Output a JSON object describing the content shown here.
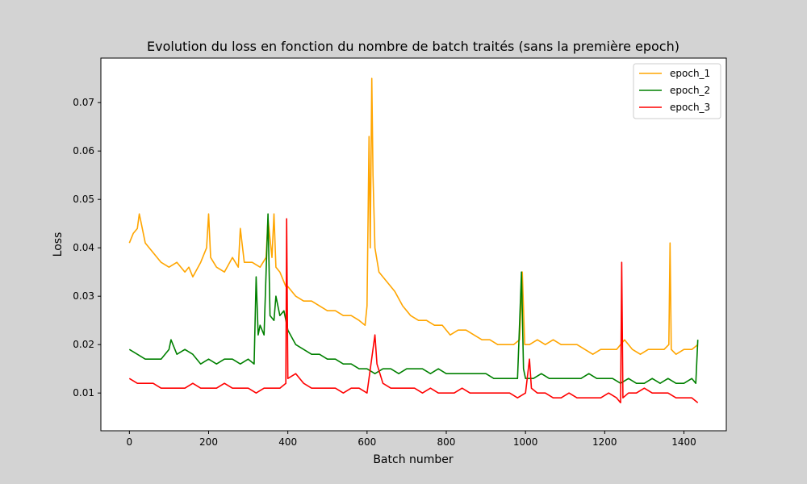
{
  "figure": {
    "background": "#d3d3d3"
  },
  "chart_data": {
    "type": "line",
    "title": "Evolution du loss en fonction du nombre de batch traités (sans la première epoch)",
    "xlabel": "Batch number",
    "ylabel": "Loss",
    "xlim": [
      -72,
      1507
    ],
    "ylim": [
      0.0022,
      0.0792
    ],
    "xticks": [
      0,
      200,
      400,
      600,
      800,
      1000,
      1200,
      1400
    ],
    "yticks": [
      0.01,
      0.02,
      0.03,
      0.04,
      0.05,
      0.06,
      0.07
    ],
    "xtick_labels": [
      "0",
      "200",
      "400",
      "600",
      "800",
      "1000",
      "1200",
      "1400"
    ],
    "ytick_labels": [
      "0.01",
      "0.02",
      "0.03",
      "0.04",
      "0.05",
      "0.06",
      "0.07"
    ],
    "grid": false,
    "legend": {
      "position": "upper right"
    },
    "series": [
      {
        "name": "epoch_1",
        "color": "#ffa500",
        "points": [
          [
            0,
            0.041
          ],
          [
            10,
            0.043
          ],
          [
            20,
            0.044
          ],
          [
            25,
            0.047
          ],
          [
            30,
            0.045
          ],
          [
            40,
            0.041
          ],
          [
            60,
            0.039
          ],
          [
            80,
            0.037
          ],
          [
            100,
            0.036
          ],
          [
            120,
            0.037
          ],
          [
            140,
            0.035
          ],
          [
            150,
            0.036
          ],
          [
            160,
            0.034
          ],
          [
            180,
            0.037
          ],
          [
            195,
            0.04
          ],
          [
            200,
            0.047
          ],
          [
            205,
            0.038
          ],
          [
            220,
            0.036
          ],
          [
            240,
            0.035
          ],
          [
            260,
            0.038
          ],
          [
            275,
            0.036
          ],
          [
            280,
            0.044
          ],
          [
            290,
            0.037
          ],
          [
            310,
            0.037
          ],
          [
            330,
            0.036
          ],
          [
            345,
            0.038
          ],
          [
            350,
            0.046
          ],
          [
            360,
            0.038
          ],
          [
            365,
            0.047
          ],
          [
            370,
            0.036
          ],
          [
            380,
            0.035
          ],
          [
            395,
            0.032
          ],
          [
            400,
            0.032
          ],
          [
            420,
            0.03
          ],
          [
            440,
            0.029
          ],
          [
            460,
            0.029
          ],
          [
            480,
            0.028
          ],
          [
            500,
            0.027
          ],
          [
            520,
            0.027
          ],
          [
            540,
            0.026
          ],
          [
            560,
            0.026
          ],
          [
            580,
            0.025
          ],
          [
            595,
            0.024
          ],
          [
            600,
            0.028
          ],
          [
            605,
            0.063
          ],
          [
            608,
            0.04
          ],
          [
            612,
            0.075
          ],
          [
            615,
            0.055
          ],
          [
            620,
            0.04
          ],
          [
            630,
            0.035
          ],
          [
            650,
            0.033
          ],
          [
            670,
            0.031
          ],
          [
            690,
            0.028
          ],
          [
            710,
            0.026
          ],
          [
            730,
            0.025
          ],
          [
            750,
            0.025
          ],
          [
            770,
            0.024
          ],
          [
            790,
            0.024
          ],
          [
            810,
            0.022
          ],
          [
            830,
            0.023
          ],
          [
            850,
            0.023
          ],
          [
            870,
            0.022
          ],
          [
            890,
            0.021
          ],
          [
            910,
            0.021
          ],
          [
            930,
            0.02
          ],
          [
            950,
            0.02
          ],
          [
            970,
            0.02
          ],
          [
            985,
            0.021
          ],
          [
            992,
            0.035
          ],
          [
            998,
            0.02
          ],
          [
            1010,
            0.02
          ],
          [
            1030,
            0.021
          ],
          [
            1050,
            0.02
          ],
          [
            1070,
            0.021
          ],
          [
            1090,
            0.02
          ],
          [
            1110,
            0.02
          ],
          [
            1130,
            0.02
          ],
          [
            1150,
            0.019
          ],
          [
            1170,
            0.018
          ],
          [
            1190,
            0.019
          ],
          [
            1210,
            0.019
          ],
          [
            1230,
            0.019
          ],
          [
            1250,
            0.021
          ],
          [
            1270,
            0.019
          ],
          [
            1290,
            0.018
          ],
          [
            1310,
            0.019
          ],
          [
            1330,
            0.019
          ],
          [
            1350,
            0.019
          ],
          [
            1362,
            0.02
          ],
          [
            1365,
            0.041
          ],
          [
            1368,
            0.019
          ],
          [
            1380,
            0.018
          ],
          [
            1400,
            0.019
          ],
          [
            1420,
            0.019
          ],
          [
            1435,
            0.02
          ]
        ]
      },
      {
        "name": "epoch_2",
        "color": "#008000",
        "points": [
          [
            0,
            0.019
          ],
          [
            20,
            0.018
          ],
          [
            40,
            0.017
          ],
          [
            60,
            0.017
          ],
          [
            80,
            0.017
          ],
          [
            100,
            0.019
          ],
          [
            105,
            0.021
          ],
          [
            120,
            0.018
          ],
          [
            140,
            0.019
          ],
          [
            160,
            0.018
          ],
          [
            180,
            0.016
          ],
          [
            200,
            0.017
          ],
          [
            220,
            0.016
          ],
          [
            240,
            0.017
          ],
          [
            260,
            0.017
          ],
          [
            280,
            0.016
          ],
          [
            300,
            0.017
          ],
          [
            315,
            0.016
          ],
          [
            320,
            0.034
          ],
          [
            325,
            0.022
          ],
          [
            330,
            0.024
          ],
          [
            340,
            0.022
          ],
          [
            350,
            0.047
          ],
          [
            355,
            0.026
          ],
          [
            365,
            0.025
          ],
          [
            370,
            0.03
          ],
          [
            380,
            0.026
          ],
          [
            390,
            0.027
          ],
          [
            400,
            0.023
          ],
          [
            420,
            0.02
          ],
          [
            440,
            0.019
          ],
          [
            460,
            0.018
          ],
          [
            480,
            0.018
          ],
          [
            500,
            0.017
          ],
          [
            520,
            0.017
          ],
          [
            540,
            0.016
          ],
          [
            560,
            0.016
          ],
          [
            580,
            0.015
          ],
          [
            600,
            0.015
          ],
          [
            620,
            0.014
          ],
          [
            640,
            0.015
          ],
          [
            660,
            0.015
          ],
          [
            680,
            0.014
          ],
          [
            700,
            0.015
          ],
          [
            720,
            0.015
          ],
          [
            740,
            0.015
          ],
          [
            760,
            0.014
          ],
          [
            780,
            0.015
          ],
          [
            800,
            0.014
          ],
          [
            820,
            0.014
          ],
          [
            840,
            0.014
          ],
          [
            860,
            0.014
          ],
          [
            880,
            0.014
          ],
          [
            900,
            0.014
          ],
          [
            920,
            0.013
          ],
          [
            940,
            0.013
          ],
          [
            960,
            0.013
          ],
          [
            980,
            0.013
          ],
          [
            990,
            0.035
          ],
          [
            995,
            0.015
          ],
          [
            1000,
            0.013
          ],
          [
            1020,
            0.013
          ],
          [
            1040,
            0.014
          ],
          [
            1060,
            0.013
          ],
          [
            1080,
            0.013
          ],
          [
            1100,
            0.013
          ],
          [
            1120,
            0.013
          ],
          [
            1140,
            0.013
          ],
          [
            1160,
            0.014
          ],
          [
            1180,
            0.013
          ],
          [
            1200,
            0.013
          ],
          [
            1220,
            0.013
          ],
          [
            1240,
            0.012
          ],
          [
            1260,
            0.013
          ],
          [
            1280,
            0.012
          ],
          [
            1300,
            0.012
          ],
          [
            1320,
            0.013
          ],
          [
            1340,
            0.012
          ],
          [
            1360,
            0.013
          ],
          [
            1380,
            0.012
          ],
          [
            1400,
            0.012
          ],
          [
            1420,
            0.013
          ],
          [
            1430,
            0.012
          ],
          [
            1435,
            0.021
          ]
        ]
      },
      {
        "name": "epoch_3",
        "color": "#ff0000",
        "points": [
          [
            0,
            0.013
          ],
          [
            20,
            0.012
          ],
          [
            40,
            0.012
          ],
          [
            60,
            0.012
          ],
          [
            80,
            0.011
          ],
          [
            100,
            0.011
          ],
          [
            120,
            0.011
          ],
          [
            140,
            0.011
          ],
          [
            160,
            0.012
          ],
          [
            180,
            0.011
          ],
          [
            200,
            0.011
          ],
          [
            220,
            0.011
          ],
          [
            240,
            0.012
          ],
          [
            260,
            0.011
          ],
          [
            280,
            0.011
          ],
          [
            300,
            0.011
          ],
          [
            320,
            0.01
          ],
          [
            340,
            0.011
          ],
          [
            360,
            0.011
          ],
          [
            380,
            0.011
          ],
          [
            395,
            0.012
          ],
          [
            397,
            0.046
          ],
          [
            400,
            0.013
          ],
          [
            420,
            0.014
          ],
          [
            440,
            0.012
          ],
          [
            460,
            0.011
          ],
          [
            480,
            0.011
          ],
          [
            500,
            0.011
          ],
          [
            520,
            0.011
          ],
          [
            540,
            0.01
          ],
          [
            560,
            0.011
          ],
          [
            580,
            0.011
          ],
          [
            600,
            0.01
          ],
          [
            620,
            0.022
          ],
          [
            625,
            0.016
          ],
          [
            640,
            0.012
          ],
          [
            660,
            0.011
          ],
          [
            680,
            0.011
          ],
          [
            700,
            0.011
          ],
          [
            720,
            0.011
          ],
          [
            740,
            0.01
          ],
          [
            760,
            0.011
          ],
          [
            780,
            0.01
          ],
          [
            800,
            0.01
          ],
          [
            820,
            0.01
          ],
          [
            840,
            0.011
          ],
          [
            860,
            0.01
          ],
          [
            880,
            0.01
          ],
          [
            900,
            0.01
          ],
          [
            920,
            0.01
          ],
          [
            940,
            0.01
          ],
          [
            960,
            0.01
          ],
          [
            980,
            0.009
          ],
          [
            1000,
            0.01
          ],
          [
            1010,
            0.017
          ],
          [
            1015,
            0.011
          ],
          [
            1030,
            0.01
          ],
          [
            1050,
            0.01
          ],
          [
            1070,
            0.009
          ],
          [
            1090,
            0.009
          ],
          [
            1110,
            0.01
          ],
          [
            1130,
            0.009
          ],
          [
            1150,
            0.009
          ],
          [
            1170,
            0.009
          ],
          [
            1190,
            0.009
          ],
          [
            1210,
            0.01
          ],
          [
            1230,
            0.009
          ],
          [
            1240,
            0.008
          ],
          [
            1243,
            0.037
          ],
          [
            1246,
            0.009
          ],
          [
            1260,
            0.01
          ],
          [
            1280,
            0.01
          ],
          [
            1300,
            0.011
          ],
          [
            1320,
            0.01
          ],
          [
            1340,
            0.01
          ],
          [
            1360,
            0.01
          ],
          [
            1380,
            0.009
          ],
          [
            1400,
            0.009
          ],
          [
            1420,
            0.009
          ],
          [
            1435,
            0.008
          ]
        ]
      }
    ]
  }
}
